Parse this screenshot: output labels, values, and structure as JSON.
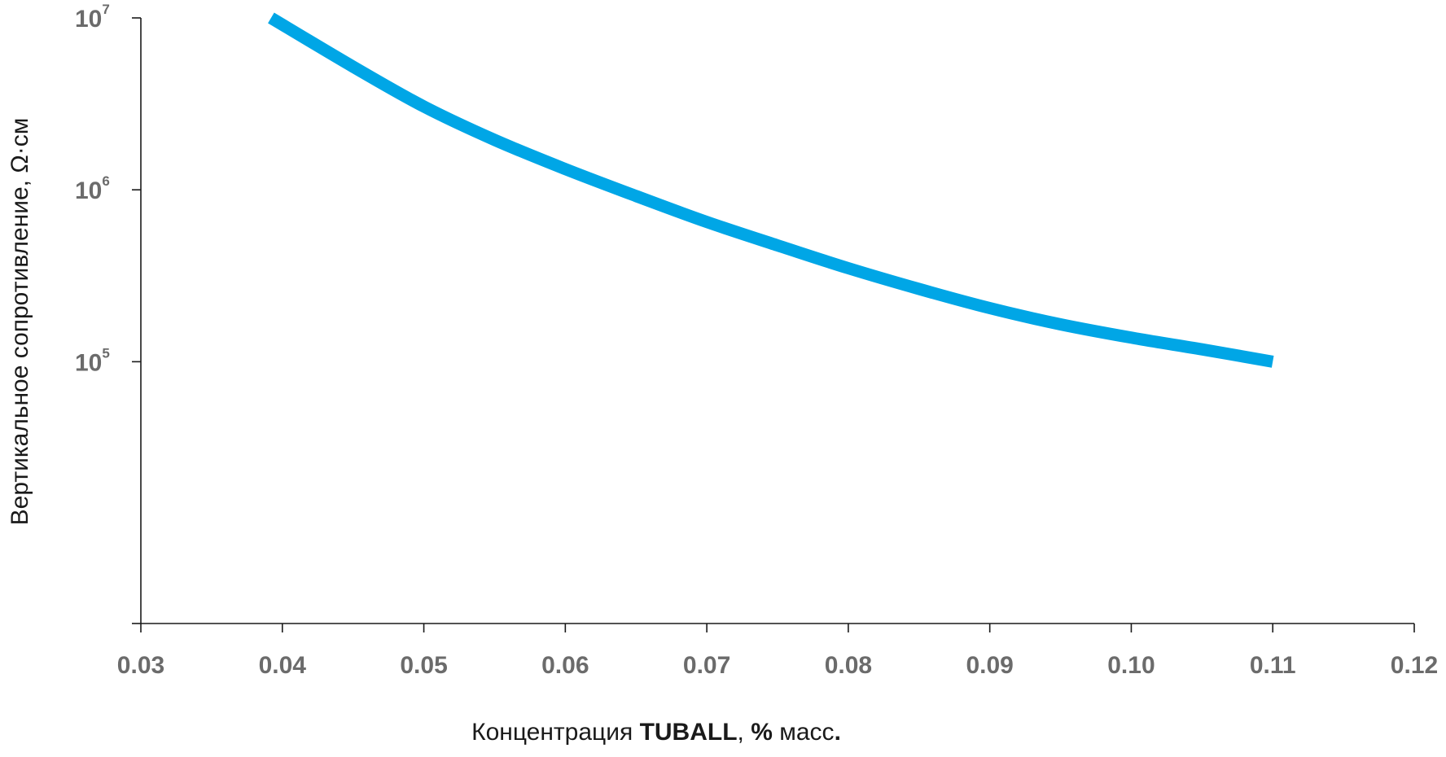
{
  "chart_data": {
    "type": "line",
    "x_scale": "linear",
    "y_scale": "log",
    "xlim": [
      0.03,
      0.12
    ],
    "ylim": [
      3000,
      10000000
    ],
    "x_ticks": [
      "0.03",
      "0.04",
      "0.05",
      "0.06",
      "0.07",
      "0.08",
      "0.09",
      "0.10",
      "0.11",
      "0.12"
    ],
    "y_ticks": [
      {
        "base": "10",
        "exp": "7",
        "value": 10000000
      },
      {
        "base": "10",
        "exp": "6",
        "value": 1000000
      },
      {
        "base": "10",
        "exp": "5",
        "value": 100000
      }
    ],
    "xlabel": {
      "part1": "Концентрация ",
      "bold1": "TUBALL",
      "part2": ", ",
      "bold2": "%",
      "part3": " масс",
      "bold3": "."
    },
    "ylabel": "Вертикальное сопротивление,  Ω·см",
    "grid": false,
    "legend": "none",
    "series": [
      {
        "color": "#00a6e6",
        "x": [
          0.0392,
          0.045,
          0.05,
          0.055,
          0.06,
          0.065,
          0.07,
          0.075,
          0.08,
          0.085,
          0.09,
          0.095,
          0.1,
          0.105,
          0.11
        ],
        "y": [
          10000000,
          5200000,
          3050000,
          1950000,
          1320000,
          920000,
          650000,
          475000,
          350000,
          265000,
          205000,
          165000,
          138000,
          118000,
          100000
        ]
      }
    ]
  }
}
